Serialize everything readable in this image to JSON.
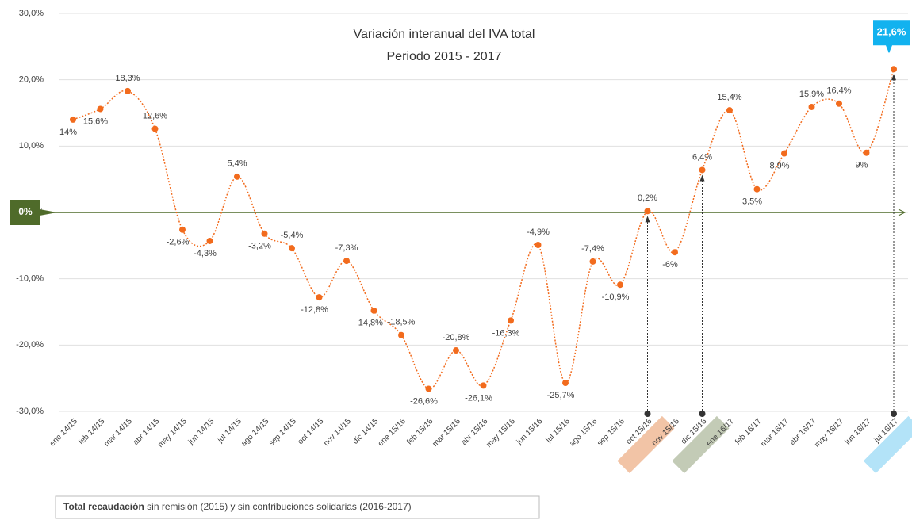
{
  "chart_data": {
    "type": "line",
    "title": "Variación interanual del IVA total",
    "subtitle": "Periodo 2015 - 2017",
    "categories": [
      "ene 14/15",
      "feb 14/15",
      "mar 14/15",
      "abr 14/15",
      "may 14/15",
      "jun 14/15",
      "jul 14/15",
      "ago 14/15",
      "sep 14/15",
      "oct 14/15",
      "nov 14/15",
      "dic 14/15",
      "ene 15/16",
      "feb 15/16",
      "mar 15/16",
      "abr 15/16",
      "may 15/16",
      "jun 15/16",
      "jul 15/16",
      "ago 15/16",
      "sep 15/16",
      "oct 15/16",
      "nov 15/16",
      "dic 15/16",
      "ene 16/17",
      "feb 16/17",
      "mar 16/17",
      "abr 16/17",
      "may 16/17",
      "jun 16/17",
      "jul 16/17"
    ],
    "values": [
      14,
      15.6,
      18.3,
      12.6,
      -2.6,
      -4.3,
      5.4,
      -3.2,
      -5.4,
      -12.8,
      -7.3,
      -14.8,
      -18.5,
      -26.6,
      -20.8,
      -26.1,
      -16.3,
      -4.9,
      -25.7,
      -7.4,
      -10.9,
      0.2,
      -6,
      6.4,
      15.4,
      3.5,
      8.9,
      15.9,
      16.4,
      9,
      21.6
    ],
    "value_labels": [
      "14%",
      "15,6%",
      "18,3%",
      "12,6%",
      "-2,6%",
      "-4,3%",
      "5,4%",
      "-3,2%",
      "-5,4%",
      "-12,8%",
      "-7,3%",
      "-14,8%",
      "-18,5%",
      "-26,6%",
      "-20,8%",
      "-26,1%",
      "-16,3%",
      "-4,9%",
      "-25,7%",
      "-7,4%",
      "-10,9%",
      "0,2%",
      "-6%",
      "6,4%",
      "15,4%",
      "3,5%",
      "8,9%",
      "15,9%",
      "16,4%",
      "9%",
      "21,6%"
    ],
    "color": "#f26b1d",
    "ylim": [
      -30,
      30
    ],
    "yticks": [
      {
        "value": -30,
        "label": "-30,0%"
      },
      {
        "value": -20,
        "label": "-20,0%"
      },
      {
        "value": -10,
        "label": "-10,0%"
      },
      {
        "value": 0,
        "label": "0,0%"
      },
      {
        "value": 10,
        "label": "10,0%"
      },
      {
        "value": 20,
        "label": "20,0%"
      },
      {
        "value": 30,
        "label": "30,0%"
      }
    ],
    "grid": true,
    "zero_label": "0%",
    "zero_color": "#4f6b2a",
    "highlights": [
      {
        "index": 21,
        "color": "#f2c4a6"
      },
      {
        "index": 23,
        "color": "#c3cbb6"
      },
      {
        "index": 30,
        "color": "#b3e3f8"
      }
    ],
    "callout_color": "#12b2ef",
    "note_bold": "Total recaudación",
    "note": " sin remisión (2015) y sin contribuciones solidarias (2016-2017)"
  }
}
